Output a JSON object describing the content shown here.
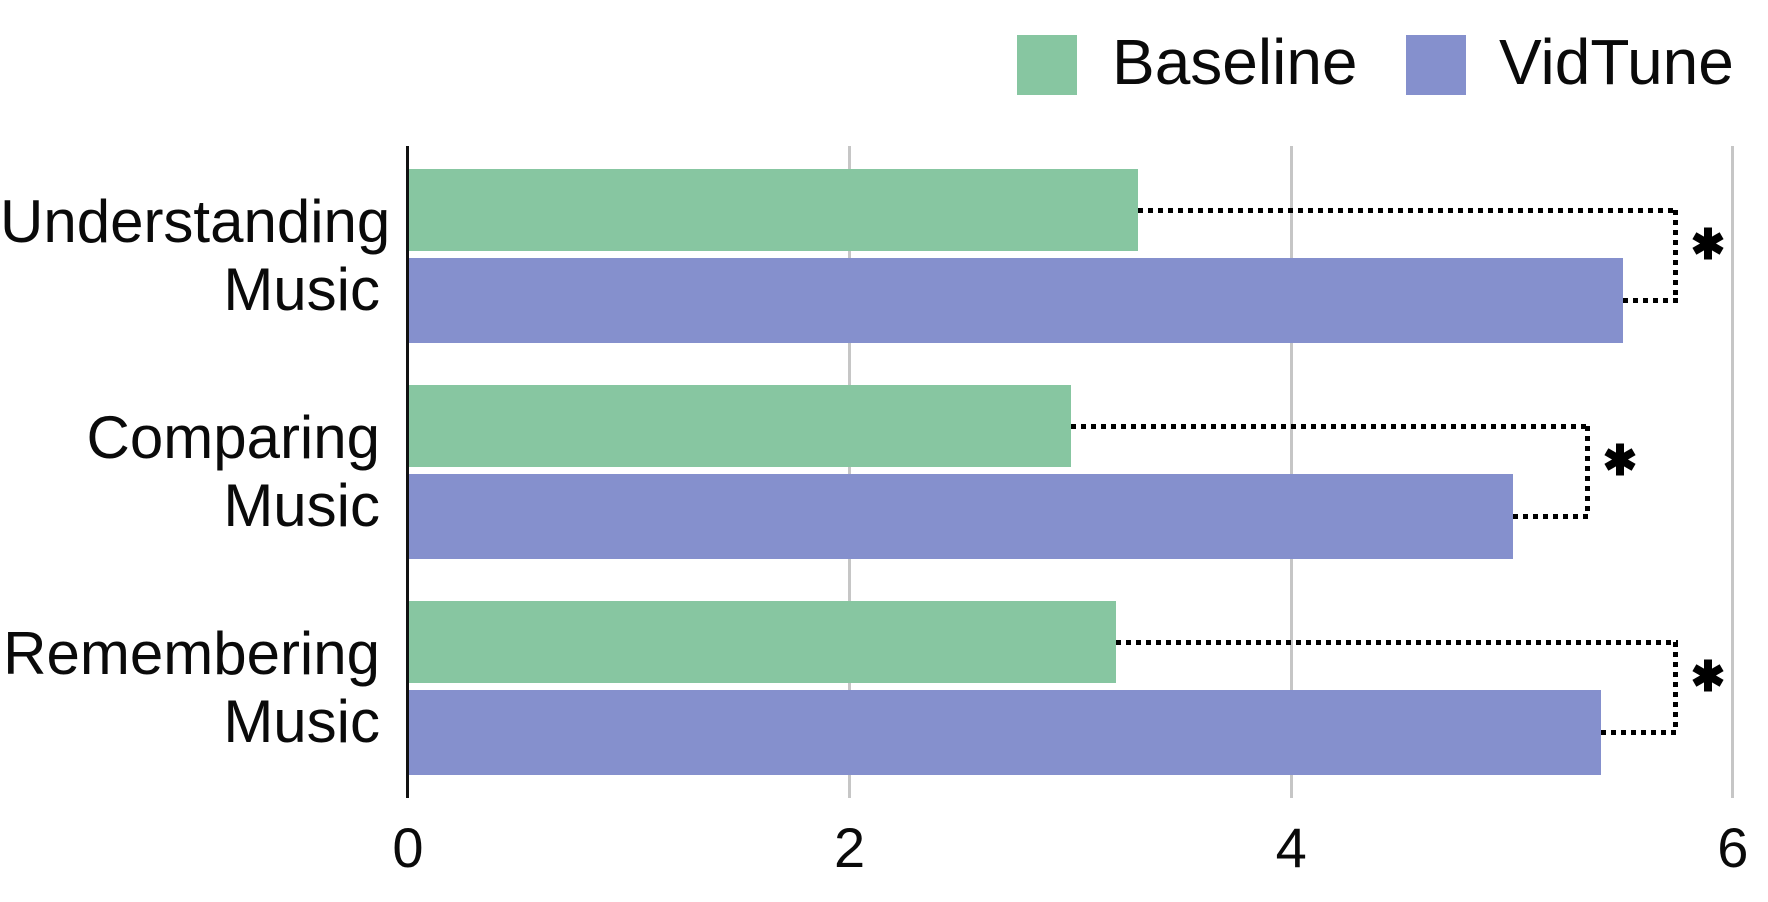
{
  "colors": {
    "baseline": "#87C6A1",
    "vidtune": "#8590CD",
    "gridline": "#C6C6C6",
    "axis": "#111111",
    "text": "#0A0A0A"
  },
  "legend": {
    "items": [
      {
        "label": "Baseline"
      },
      {
        "label": "VidTune"
      }
    ]
  },
  "chart_data": {
    "type": "bar",
    "orientation": "horizontal",
    "title": "",
    "xlabel": "",
    "ylabel": "",
    "categories": [
      "Understanding Music",
      "Comparing Music",
      "Remembering Music"
    ],
    "category_label_lines": [
      [
        "Understanding",
        "Music"
      ],
      [
        "Comparing",
        "Music"
      ],
      [
        "Remembering",
        "Music"
      ]
    ],
    "series": [
      {
        "name": "Baseline",
        "color": "#87C6A1",
        "values": [
          3.3,
          3.0,
          3.2
        ]
      },
      {
        "name": "VidTune",
        "color": "#8590CD",
        "values": [
          5.5,
          5.0,
          5.4
        ]
      }
    ],
    "xlim": [
      0,
      6
    ],
    "xticks": [
      0,
      2,
      4,
      6
    ],
    "grid": true,
    "legend_position": "top-right",
    "significance": [
      {
        "category": "Understanding Music",
        "marker": "*",
        "bracket_end_value": 5.74
      },
      {
        "category": "Comparing Music",
        "marker": "*",
        "bracket_end_value": 5.34
      },
      {
        "category": "Remembering Music",
        "marker": "*",
        "bracket_end_value": 5.74
      }
    ]
  }
}
